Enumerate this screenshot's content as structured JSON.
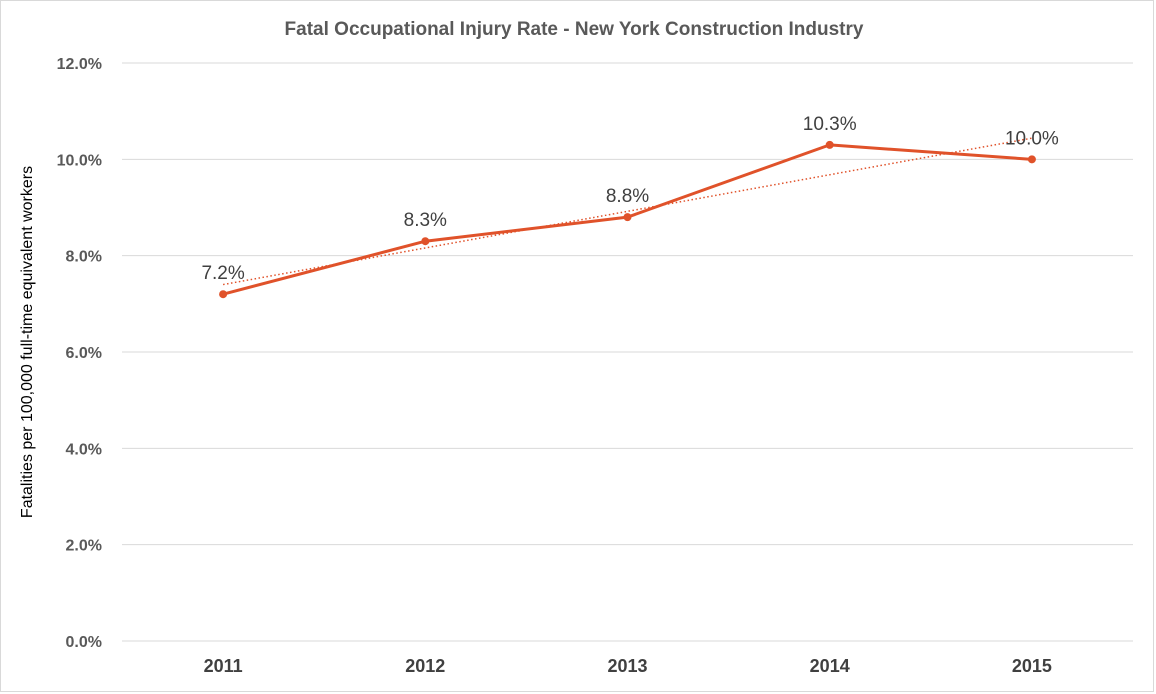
{
  "chart_data": {
    "type": "line",
    "title": "Fatal Occupational Injury Rate - New York Construction Industry",
    "xlabel": "",
    "ylabel": "Fatalities per 100,000 full-time equivalent workers",
    "categories": [
      "2011",
      "2012",
      "2013",
      "2014",
      "2015"
    ],
    "series": [
      {
        "values": [
          7.2,
          8.3,
          8.8,
          10.3,
          10.0
        ],
        "data_labels": [
          "7.2%",
          "8.3%",
          "8.8%",
          "10.3%",
          "10.0%"
        ],
        "color": "#e0522a"
      }
    ],
    "trendline": {
      "type": "linear",
      "style": "dotted",
      "color": "#e0522a"
    },
    "ylim": [
      0,
      12
    ],
    "yticks": [
      0,
      2,
      4,
      6,
      8,
      10,
      12
    ],
    "ytick_labels": [
      "0.0%",
      "2.0%",
      "4.0%",
      "6.0%",
      "8.0%",
      "10.0%",
      "12.0%"
    ],
    "grid": true,
    "legend": "none"
  }
}
